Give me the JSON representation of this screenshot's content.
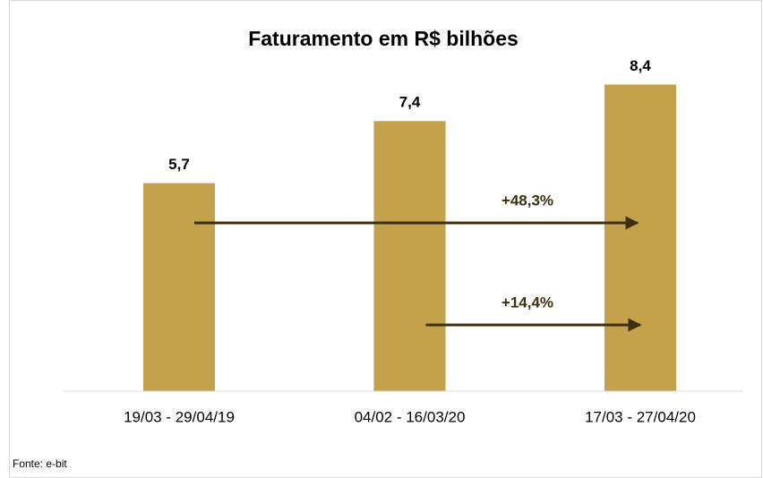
{
  "chart_data": {
    "type": "bar",
    "title": "Faturamento em R$ bilhões",
    "categories": [
      "19/03 - 29/04/19",
      "04/02 - 16/03/20",
      "17/03 - 27/04/20"
    ],
    "values": [
      5.7,
      7.4,
      8.4
    ],
    "value_labels": [
      "5,7",
      "7,4",
      "8,4"
    ],
    "color": "#c4a24c",
    "ylim": [
      0,
      9
    ],
    "annotations": [
      "+48,3%",
      "+14,4%"
    ],
    "source": "Fonte: e-bit"
  }
}
